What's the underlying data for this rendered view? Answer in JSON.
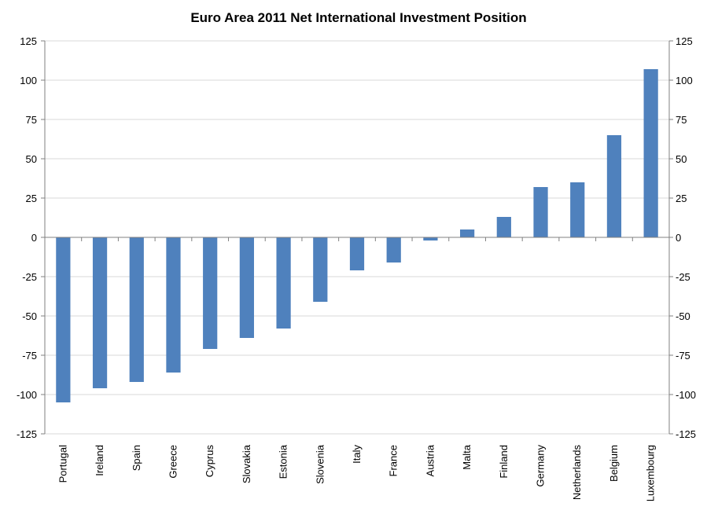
{
  "chart_data": {
    "type": "bar",
    "title": "Euro Area 2011 Net International Investment Position",
    "xlabel": "",
    "ylabel": "",
    "ylim": [
      -125,
      125
    ],
    "yticks": [
      "125",
      "100",
      "75",
      "50",
      "25",
      "0",
      "-25",
      "-50",
      "-75",
      "-100",
      "-125"
    ],
    "ytick_values": [
      125,
      100,
      75,
      50,
      25,
      0,
      -25,
      -50,
      -75,
      -100,
      -125
    ],
    "secondary_axis": true,
    "grid": "horizontal",
    "legend": "none",
    "categories": [
      "Portugal",
      "Ireland",
      "Spain",
      "Greece",
      "Cyprus",
      "Slovakia",
      "Estonia",
      "Slovenia",
      "Italy",
      "France",
      "Austria",
      "Malta",
      "Finland",
      "Germany",
      "Netherlands",
      "Belgium",
      "Luxembourg"
    ],
    "values": [
      -105,
      -96,
      -92,
      -86,
      -71,
      -64,
      -58,
      -41,
      -21,
      -16,
      -2,
      5,
      13,
      32,
      35,
      65,
      107
    ],
    "bar_color": "#4f81bd",
    "grid_color": "#d9d9d9",
    "axis_color": "#808080"
  }
}
